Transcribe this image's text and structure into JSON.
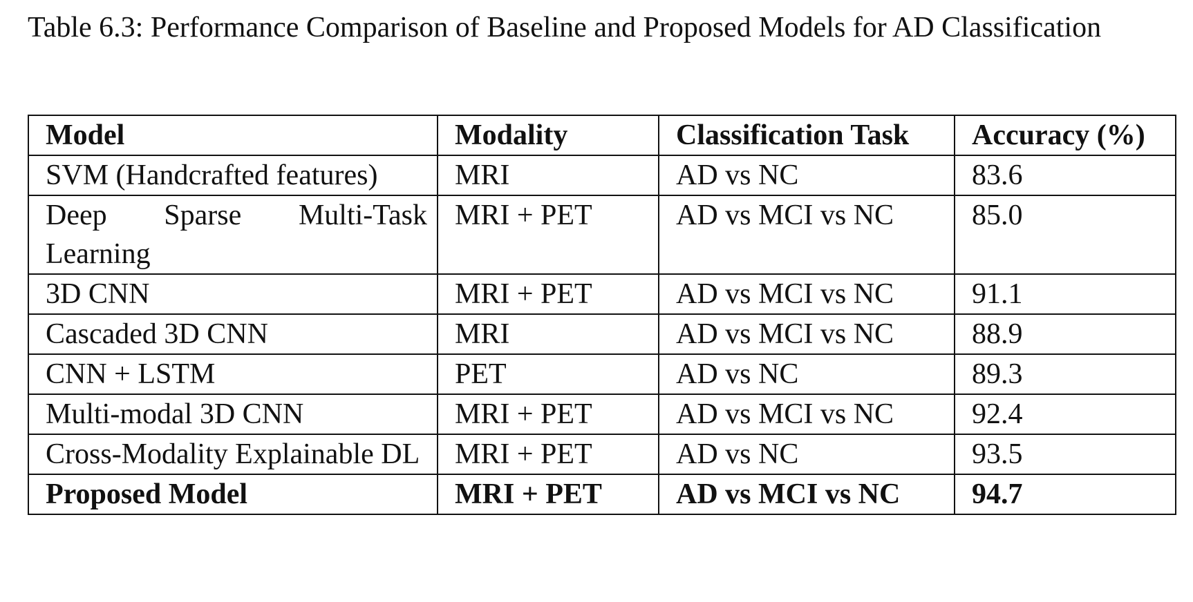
{
  "caption": "Table 6.3: Performance Comparison of Baseline and Proposed Models for AD Classification",
  "table": {
    "headers": [
      "Model",
      "Modality",
      "Classification Task",
      "Accuracy (%)"
    ],
    "rows": [
      [
        "SVM (Handcrafted features)",
        "MRI",
        "AD vs NC",
        "83.6"
      ],
      [
        "Deep Sparse Multi-Task Learning",
        "MRI + PET",
        "AD vs MCI vs NC",
        "85.0"
      ],
      [
        "3D CNN",
        "MRI + PET",
        "AD vs MCI vs NC",
        "91.1"
      ],
      [
        "Cascaded 3D CNN",
        "MRI",
        "AD vs MCI vs NC",
        "88.9"
      ],
      [
        "CNN + LSTM",
        "PET",
        "AD vs NC",
        "89.3"
      ],
      [
        "Multi-modal 3D CNN",
        "MRI + PET",
        "AD vs MCI vs NC",
        "92.4"
      ],
      [
        "Cross-Modality Explainable DL",
        "MRI + PET",
        "AD vs NC",
        "93.5"
      ],
      [
        "Proposed Model",
        "MRI + PET",
        "AD vs MCI vs NC",
        "94.7"
      ]
    ]
  }
}
